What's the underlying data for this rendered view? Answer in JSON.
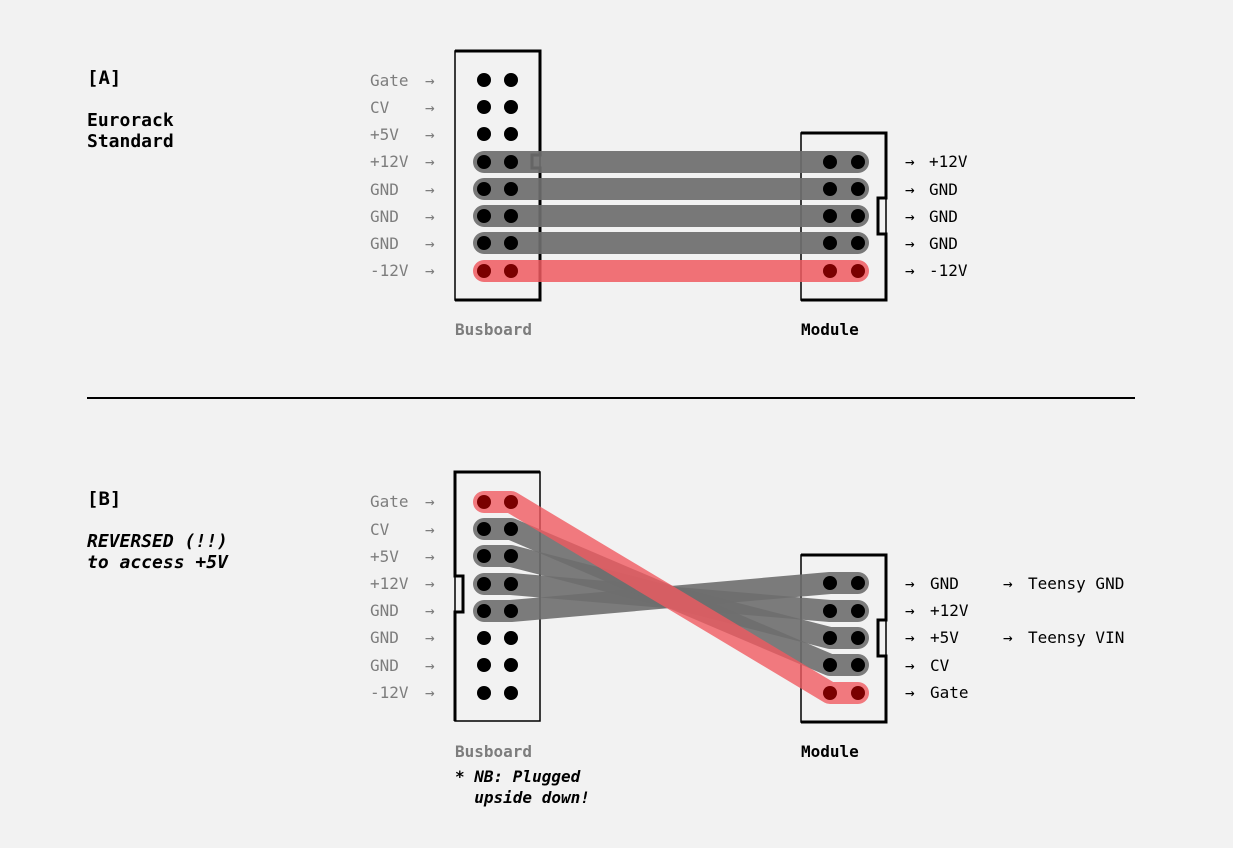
{
  "colors": {
    "cable_grey": "#6e6e6e",
    "cable_red": "#f05a60",
    "pin": "#000000",
    "pin_red": "#7a0000",
    "label_grey": "#7d7d7d"
  },
  "section_a": {
    "tag": "[A]",
    "subtitle_lines": [
      "Eurorack",
      "Standard"
    ],
    "busboard_pins": [
      "Gate",
      "CV",
      "+5V",
      "+12V",
      "GND",
      "GND",
      "GND",
      "-12V"
    ],
    "module_pins": [
      "+12V",
      "GND",
      "GND",
      "GND",
      "-12V"
    ],
    "busboard_label": "Busboard",
    "module_label": "Module"
  },
  "section_b": {
    "tag": "[B]",
    "subtitle_lines": [
      "REVERSED (!!)",
      "to access +5V"
    ],
    "busboard_pins": [
      "Gate",
      "CV",
      "+5V",
      "+12V",
      "GND",
      "GND",
      "GND",
      "-12V"
    ],
    "module_pins": [
      "GND",
      "+12V",
      "+5V",
      "CV",
      "Gate"
    ],
    "teensy": {
      "gnd": "Teensy GND",
      "vin": "Teensy VIN"
    },
    "busboard_label": "Busboard",
    "module_label": "Module",
    "note_lines": [
      "* NB: Plugged",
      "  upside down!"
    ]
  },
  "arrow": "→"
}
